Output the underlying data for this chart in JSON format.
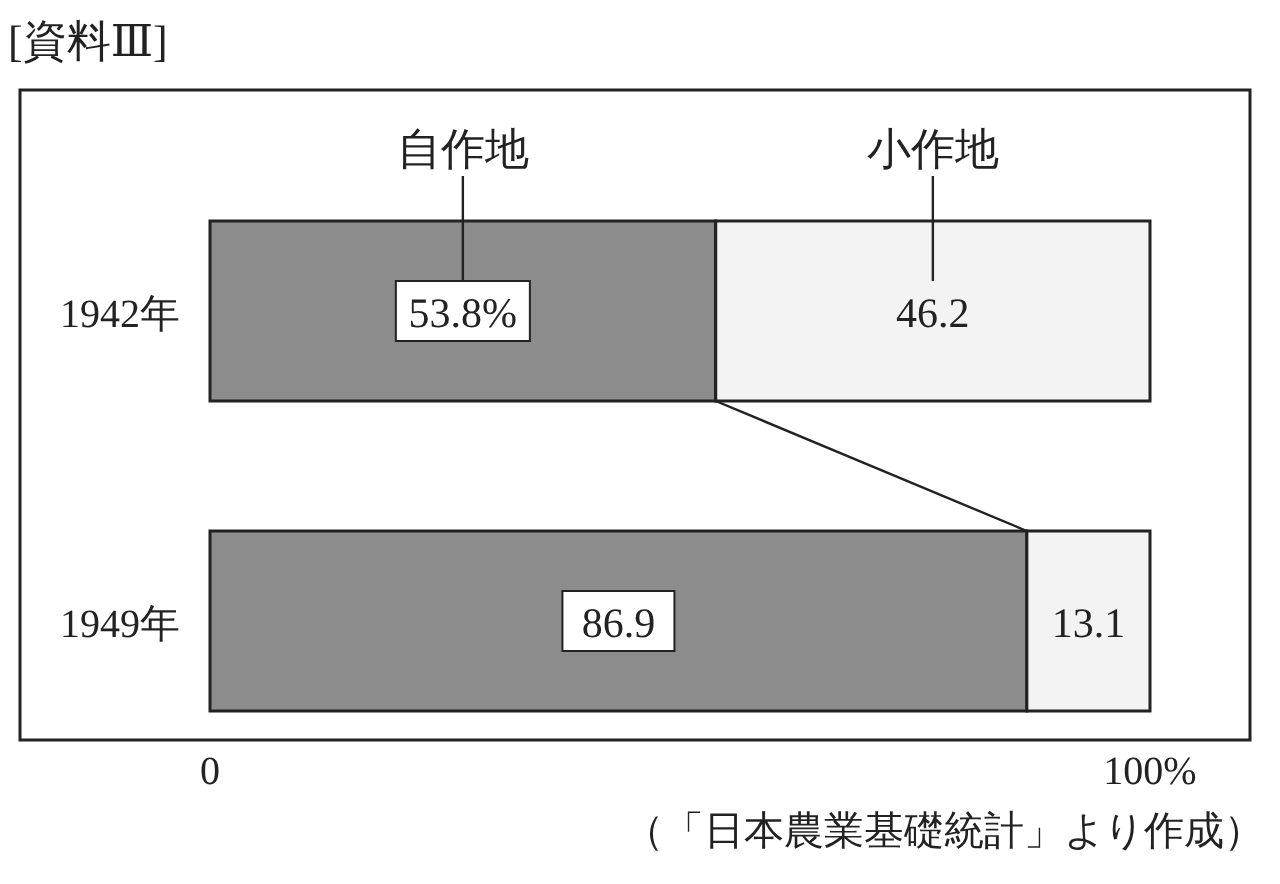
{
  "chart_data": {
    "type": "bar",
    "orientation": "horizontal",
    "stacked": true,
    "title": "[資料Ⅲ]",
    "categories": [
      "1942年",
      "1949年"
    ],
    "series": [
      {
        "name": "自作地",
        "color": "#8c8c8c",
        "values": [
          53.8,
          86.9
        ],
        "value_labels": [
          "53.8%",
          "86.9"
        ]
      },
      {
        "name": "小作地",
        "color": "#f3f3f3",
        "values": [
          46.2,
          13.1
        ],
        "value_labels": [
          "46.2",
          "13.1"
        ]
      }
    ],
    "xlim": [
      0,
      100
    ],
    "xticks": [
      0,
      {
        "value": 100,
        "label": "100%"
      }
    ],
    "annotations": [
      "（「日本農業基礎統計」より作成）"
    ]
  }
}
